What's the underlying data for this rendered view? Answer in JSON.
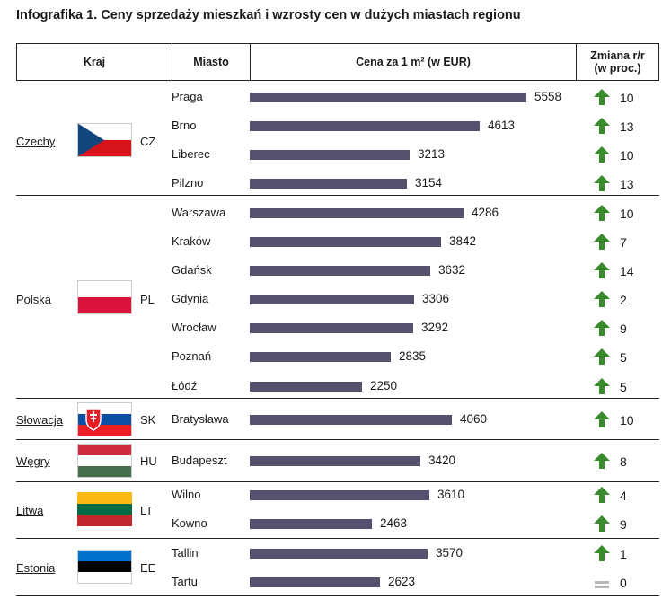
{
  "title": "Infografika 1.  Ceny sprzedaży mieszkań i wzrosty cen w dużych miastach regionu",
  "headers": {
    "country": "Kraj",
    "city": "Miasto",
    "price": "Cena za 1 m² (w EUR)",
    "change_line1": "Zmiana r/r",
    "change_line2": "(w proc.)"
  },
  "colors": {
    "bar": "#574f6e",
    "arrow_up": "#3a8a2e",
    "equal": "#b8b8b8"
  },
  "chart_data": {
    "type": "bar",
    "title": "Ceny sprzedaży mieszkań i wzrosty cen w dużych miastach regionu",
    "xlabel": "Cena za 1 m² (w EUR)",
    "ylabel": "Miasto",
    "xlim": [
      0,
      5558
    ],
    "categories": [
      "Praga",
      "Brno",
      "Liberec",
      "Pilzno",
      "Warszawa",
      "Kraków",
      "Gdańsk",
      "Gdynia",
      "Wrocław",
      "Poznań",
      "Łódź",
      "Bratysława",
      "Budapeszt",
      "Wilno",
      "Kowno",
      "Tallin",
      "Tartu"
    ],
    "values": [
      5558,
      4613,
      3213,
      3154,
      4286,
      3842,
      3632,
      3306,
      3292,
      2835,
      2250,
      4060,
      3420,
      3610,
      2463,
      3570,
      2623
    ],
    "change_yoy_pct": [
      10,
      13,
      10,
      13,
      10,
      7,
      14,
      2,
      9,
      5,
      5,
      10,
      8,
      4,
      9,
      1,
      0
    ]
  },
  "countries": [
    {
      "name": "Czechy",
      "code": "CZ",
      "flag": "cz-flag-icon",
      "underline": true
    },
    {
      "name": "Polska",
      "code": "PL",
      "flag": "pl-flag-icon",
      "underline": false
    },
    {
      "name": "Słowacja",
      "code": "SK",
      "flag": "sk-flag-icon",
      "underline": true
    },
    {
      "name": "Węgry",
      "code": "HU",
      "flag": "hu-flag-icon",
      "underline": true
    },
    {
      "name": "Litwa",
      "code": "LT",
      "flag": "lt-flag-icon",
      "underline": true
    },
    {
      "name": "Estonia",
      "code": "EE",
      "flag": "ee-flag-icon",
      "underline": true
    }
  ],
  "change_icons": [
    "arrow-up-icon",
    "arrow-up-icon",
    "arrow-up-icon",
    "arrow-up-icon",
    "arrow-up-icon",
    "arrow-up-icon",
    "arrow-up-icon",
    "arrow-up-icon",
    "arrow-up-icon",
    "arrow-up-icon",
    "arrow-up-icon",
    "arrow-up-icon",
    "arrow-up-icon",
    "arrow-up-icon",
    "arrow-up-icon",
    "arrow-up-icon",
    "equal-icon"
  ]
}
